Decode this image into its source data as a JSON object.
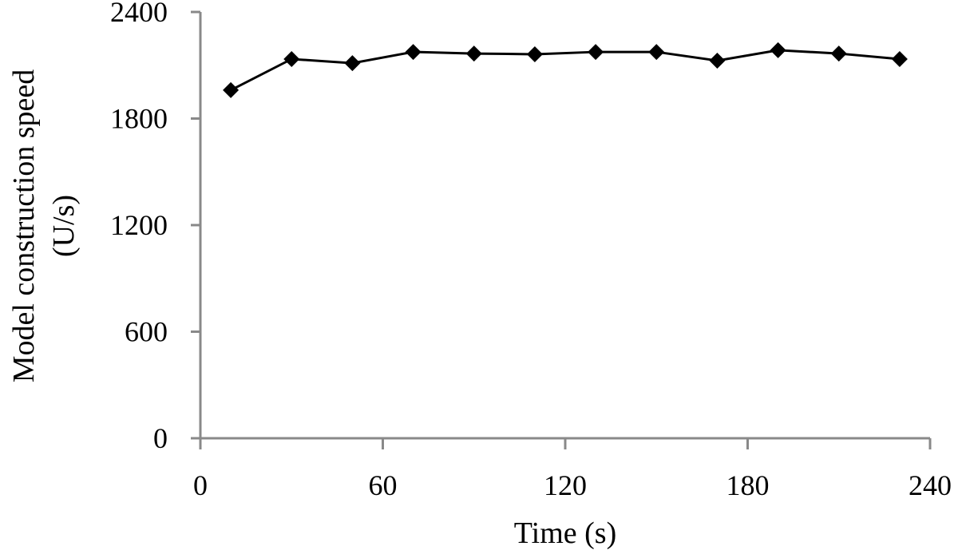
{
  "chart_data": {
    "type": "line",
    "title": "",
    "xlabel": "Time (s)",
    "ylabel": "Model construction speed (U/s)",
    "ylabel_lines": [
      "Model construction speed",
      "(U/s)"
    ],
    "xlim": [
      0,
      240
    ],
    "ylim": [
      0,
      2400
    ],
    "x_ticks": [
      0,
      60,
      120,
      180,
      240
    ],
    "y_ticks": [
      0,
      600,
      1200,
      1800,
      2400
    ],
    "grid": false,
    "legend": null,
    "marker": "diamond",
    "series": [
      {
        "name": "Model construction speed",
        "color": "#000000",
        "x": [
          10,
          30,
          50,
          70,
          90,
          110,
          130,
          150,
          170,
          190,
          210,
          230
        ],
        "values": [
          1960,
          2135,
          2112,
          2175,
          2166,
          2162,
          2175,
          2175,
          2126,
          2185,
          2166,
          2135
        ]
      }
    ]
  },
  "colors": {
    "axis": "#898989",
    "line": "#000000"
  }
}
